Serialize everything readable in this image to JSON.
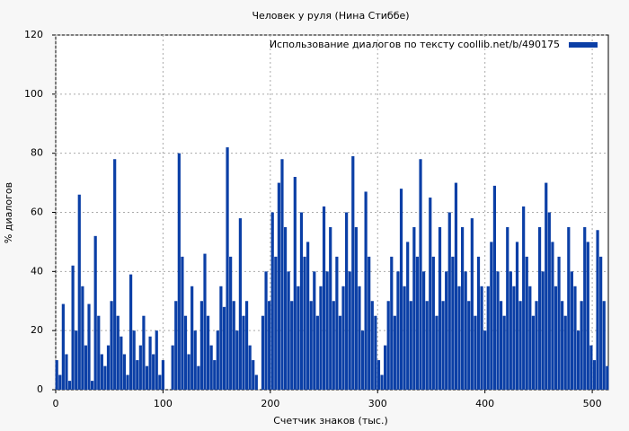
{
  "chart_data": {
    "type": "bar",
    "title": "Человек у руля (Нина Стиббе)",
    "x_label": "Счетчик знаков (тыс.)",
    "y_label": "% диалогов",
    "legend_position": "top-right",
    "grid": true,
    "xlim": [
      0,
      515
    ],
    "xticks": [
      0,
      100,
      200,
      300,
      400,
      500
    ],
    "ylim": [
      0,
      120
    ],
    "yticks": [
      0,
      20,
      40,
      60,
      80,
      100,
      120
    ],
    "x": [
      1,
      4,
      7,
      10,
      13,
      16,
      19,
      22,
      25,
      28,
      31,
      34,
      37,
      40,
      43,
      46,
      49,
      52,
      55,
      58,
      61,
      64,
      67,
      70,
      73,
      76,
      79,
      82,
      85,
      88,
      91,
      94,
      97,
      100,
      103,
      106,
      109,
      112,
      115,
      118,
      121,
      124,
      127,
      130,
      133,
      136,
      139,
      142,
      145,
      148,
      151,
      154,
      157,
      160,
      163,
      166,
      169,
      172,
      175,
      178,
      181,
      184,
      187,
      190,
      193,
      196,
      199,
      202,
      205,
      208,
      211,
      214,
      217,
      220,
      223,
      226,
      229,
      232,
      235,
      238,
      241,
      244,
      247,
      250,
      253,
      256,
      259,
      262,
      265,
      268,
      271,
      274,
      277,
      280,
      283,
      286,
      289,
      292,
      295,
      298,
      301,
      304,
      307,
      310,
      313,
      316,
      319,
      322,
      325,
      328,
      331,
      334,
      337,
      340,
      343,
      346,
      349,
      352,
      355,
      358,
      361,
      364,
      367,
      370,
      373,
      376,
      379,
      382,
      385,
      388,
      391,
      394,
      397,
      400,
      403,
      406,
      409,
      412,
      415,
      418,
      421,
      424,
      427,
      430,
      433,
      436,
      439,
      442,
      445,
      448,
      451,
      454,
      457,
      460,
      463,
      466,
      469,
      472,
      475,
      478,
      481,
      484,
      487,
      490,
      493,
      496,
      499,
      502,
      505,
      508,
      511,
      514
    ],
    "series": [
      {
        "name": "Использование диалогов по тексту  coollib.net/b/490175",
        "color": "#0b3fa6",
        "values": [
          10,
          5,
          29,
          12,
          3,
          42,
          20,
          66,
          35,
          15,
          29,
          3,
          52,
          25,
          12,
          8,
          15,
          30,
          78,
          25,
          18,
          12,
          5,
          39,
          20,
          10,
          15,
          25,
          8,
          18,
          12,
          20,
          5,
          10,
          0,
          0,
          15,
          30,
          80,
          45,
          25,
          12,
          35,
          20,
          8,
          30,
          46,
          25,
          15,
          10,
          20,
          35,
          28,
          82,
          45,
          30,
          20,
          58,
          25,
          30,
          15,
          10,
          5,
          0,
          25,
          40,
          30,
          60,
          45,
          70,
          78,
          55,
          40,
          30,
          72,
          35,
          60,
          45,
          50,
          30,
          40,
          25,
          35,
          62,
          40,
          55,
          30,
          45,
          25,
          35,
          60,
          40,
          79,
          55,
          35,
          20,
          67,
          45,
          30,
          25,
          10,
          5,
          15,
          30,
          45,
          25,
          40,
          68,
          35,
          50,
          30,
          55,
          45,
          78,
          40,
          30,
          65,
          45,
          25,
          55,
          30,
          40,
          60,
          45,
          70,
          35,
          55,
          40,
          30,
          58,
          25,
          45,
          35,
          20,
          35,
          50,
          69,
          40,
          30,
          25,
          55,
          40,
          35,
          50,
          30,
          62,
          45,
          35,
          25,
          30,
          55,
          40,
          70,
          60,
          50,
          35,
          45,
          30,
          25,
          55,
          40,
          35,
          20,
          30,
          55,
          50,
          15,
          10,
          54,
          45,
          30,
          8
        ]
      }
    ]
  }
}
